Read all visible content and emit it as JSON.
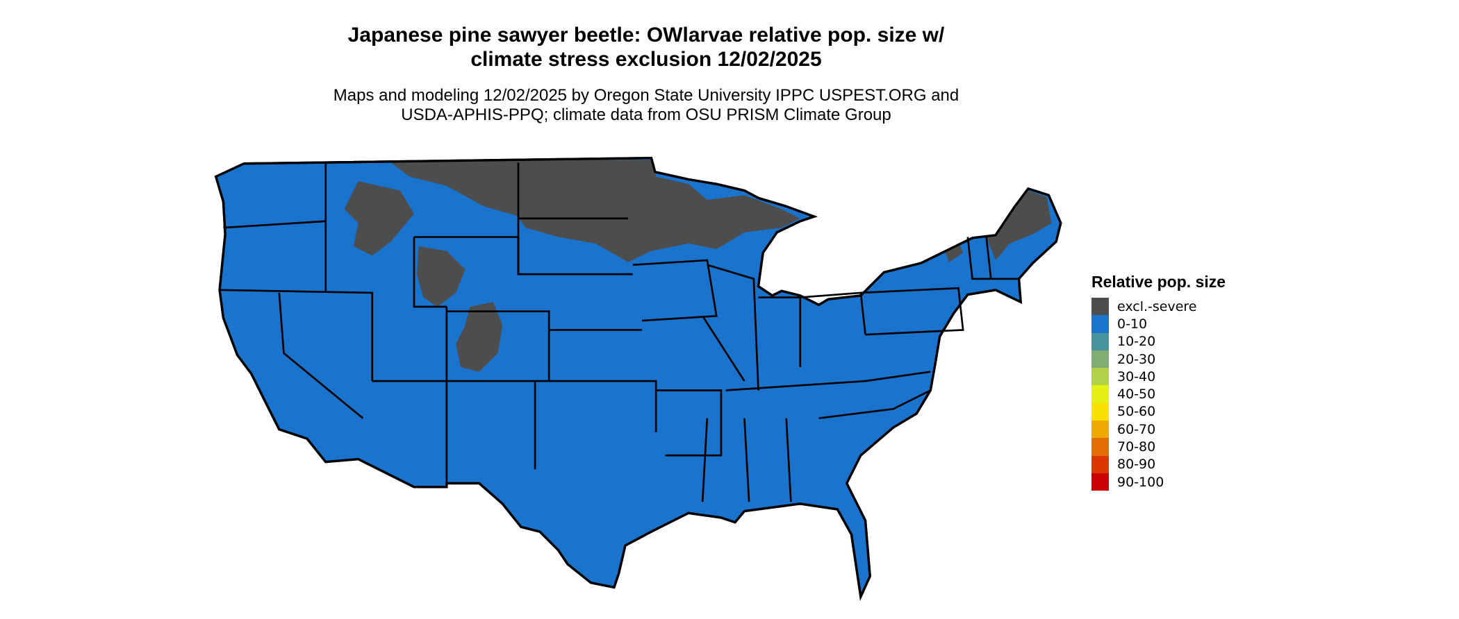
{
  "title_line1": "Japanese pine sawyer beetle: OWlarvae relative pop. size w/",
  "title_line2": "climate stress exclusion 12/02/2025",
  "subtitle_line1": "Maps and modeling 12/02/2025 by Oregon State University IPPC USPEST.ORG and",
  "subtitle_line2": "USDA-APHIS-PPQ; climate data from OSU PRISM Climate Group",
  "map": {
    "region": "Contiguous United States",
    "base_color": "#1a73cc",
    "excluded_color": "#4d4d4d",
    "border_color": "#000000"
  },
  "legend": {
    "title": "Relative pop. size",
    "items": [
      {
        "label": "excl.-severe",
        "color": "#4d4d4d"
      },
      {
        "label": "0-10",
        "color": "#1a73cc"
      },
      {
        "label": "10-20",
        "color": "#4a919e"
      },
      {
        "label": "20-30",
        "color": "#7fae72"
      },
      {
        "label": "30-40",
        "color": "#b1d147"
      },
      {
        "label": "40-50",
        "color": "#e6f014"
      },
      {
        "label": "50-60",
        "color": "#f8e100"
      },
      {
        "label": "60-70",
        "color": "#eeaa00"
      },
      {
        "label": "70-80",
        "color": "#e36f00"
      },
      {
        "label": "80-90",
        "color": "#db3700"
      },
      {
        "label": "90-100",
        "color": "#cc0000"
      }
    ]
  }
}
